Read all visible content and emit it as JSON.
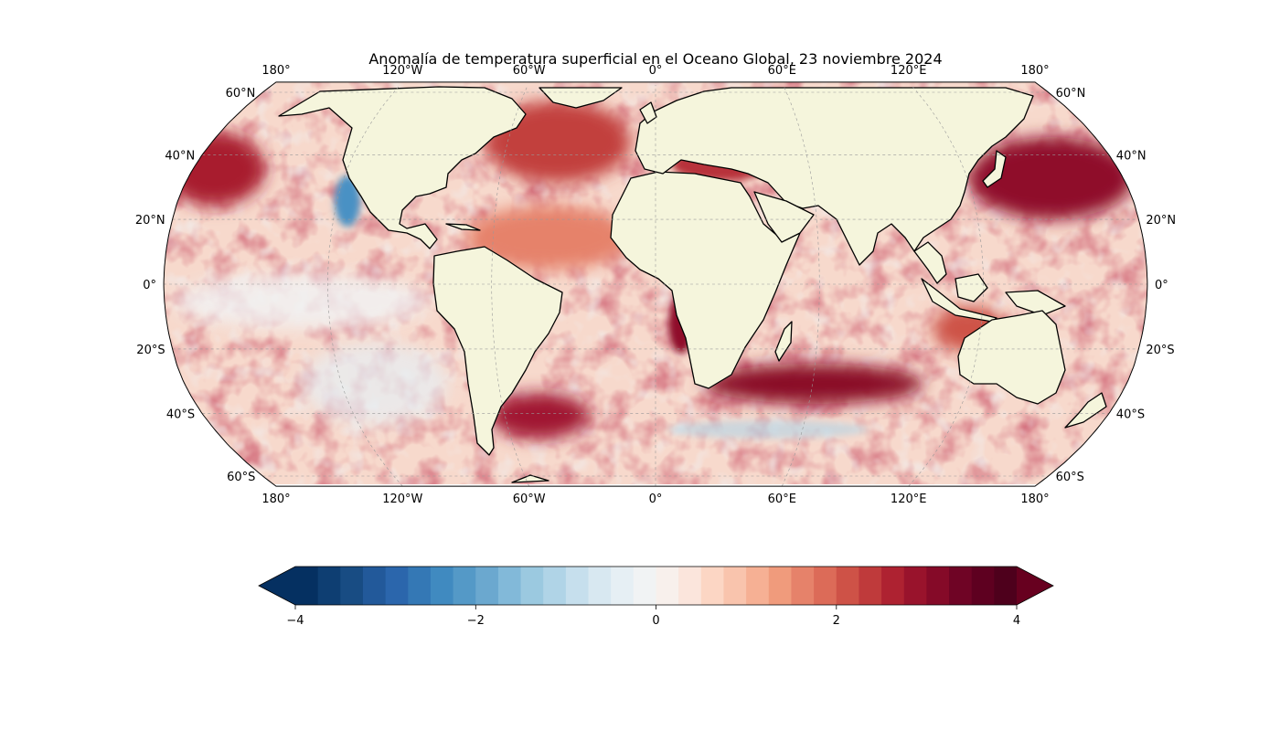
{
  "map": {
    "title": "Anomalía de temperatura superficial en el Oceano Global, 23 noviembre 2024",
    "projection": "Robinson",
    "lon_ticks_top": [
      "180°",
      "120°W",
      "60°W",
      "0°",
      "60°E",
      "120°E",
      "180°"
    ],
    "lon_ticks_bottom": [
      "180°",
      "120°W",
      "60°W",
      "0°",
      "60°E",
      "120°E",
      "180°"
    ],
    "lat_ticks_left": [
      "60°N",
      "40°N",
      "20°N",
      "0°",
      "20°S",
      "40°S",
      "60°S"
    ],
    "lat_ticks_right": [
      "60°N",
      "40°N",
      "20°N",
      "0°",
      "20°S",
      "40°S",
      "60°S"
    ],
    "colors": {
      "land": "#f5f5dc",
      "ocean_base": "#f7d9cc",
      "gridline": "#999999"
    },
    "regions": [
      {
        "name": "north-pacific-west-hotspot",
        "anomaly": 3.5
      },
      {
        "name": "northwest-pacific-japan-hotspot",
        "anomaly": 3.8
      },
      {
        "name": "north-atlantic-hotspot",
        "anomaly": 3.0
      },
      {
        "name": "mediterranean-black-sea",
        "anomaly": 3.0
      },
      {
        "name": "angola-benguela-coast",
        "anomaly": 3.5
      },
      {
        "name": "south-indian-ocean-band",
        "anomaly": 3.8
      },
      {
        "name": "south-atlantic-argentina",
        "anomaly": 3.2
      },
      {
        "name": "equatorial-pacific",
        "anomaly": 0.6
      },
      {
        "name": "southeast-pacific",
        "anomaly": 0.2
      },
      {
        "name": "california-coast",
        "anomaly": -1.6
      },
      {
        "name": "gulf-stream-margin",
        "anomaly": -1.0
      },
      {
        "name": "southern-ocean-patches",
        "anomaly": -1.2
      }
    ]
  },
  "colorbar": {
    "min": -4,
    "max": 4,
    "step": 0.25,
    "extend": "both",
    "tick_labels": [
      "−4",
      "−2",
      "0",
      "2",
      "4"
    ],
    "tick_values": [
      -4,
      -2,
      0,
      2,
      4
    ],
    "colors": [
      "#053061",
      "#0e3e72",
      "#184c83",
      "#22599a",
      "#2b66ac",
      "#3478b5",
      "#408ac0",
      "#5499c7",
      "#6ba8cf",
      "#82b9d9",
      "#9bc9e0",
      "#b0d4e7",
      "#c6dfed",
      "#d8e8f1",
      "#e6eff4",
      "#f1f3f4",
      "#f8f0ec",
      "#fbe5dc",
      "#fcd6c4",
      "#f9c4ad",
      "#f6b094",
      "#f09b7c",
      "#e6826a",
      "#dc6b58",
      "#ce5247",
      "#bf3a3b",
      "#ae2231",
      "#99132c",
      "#850a28",
      "#6f0425",
      "#5e0020",
      "#4e001c"
    ],
    "under_color": "#053061",
    "over_color": "#67001f"
  }
}
